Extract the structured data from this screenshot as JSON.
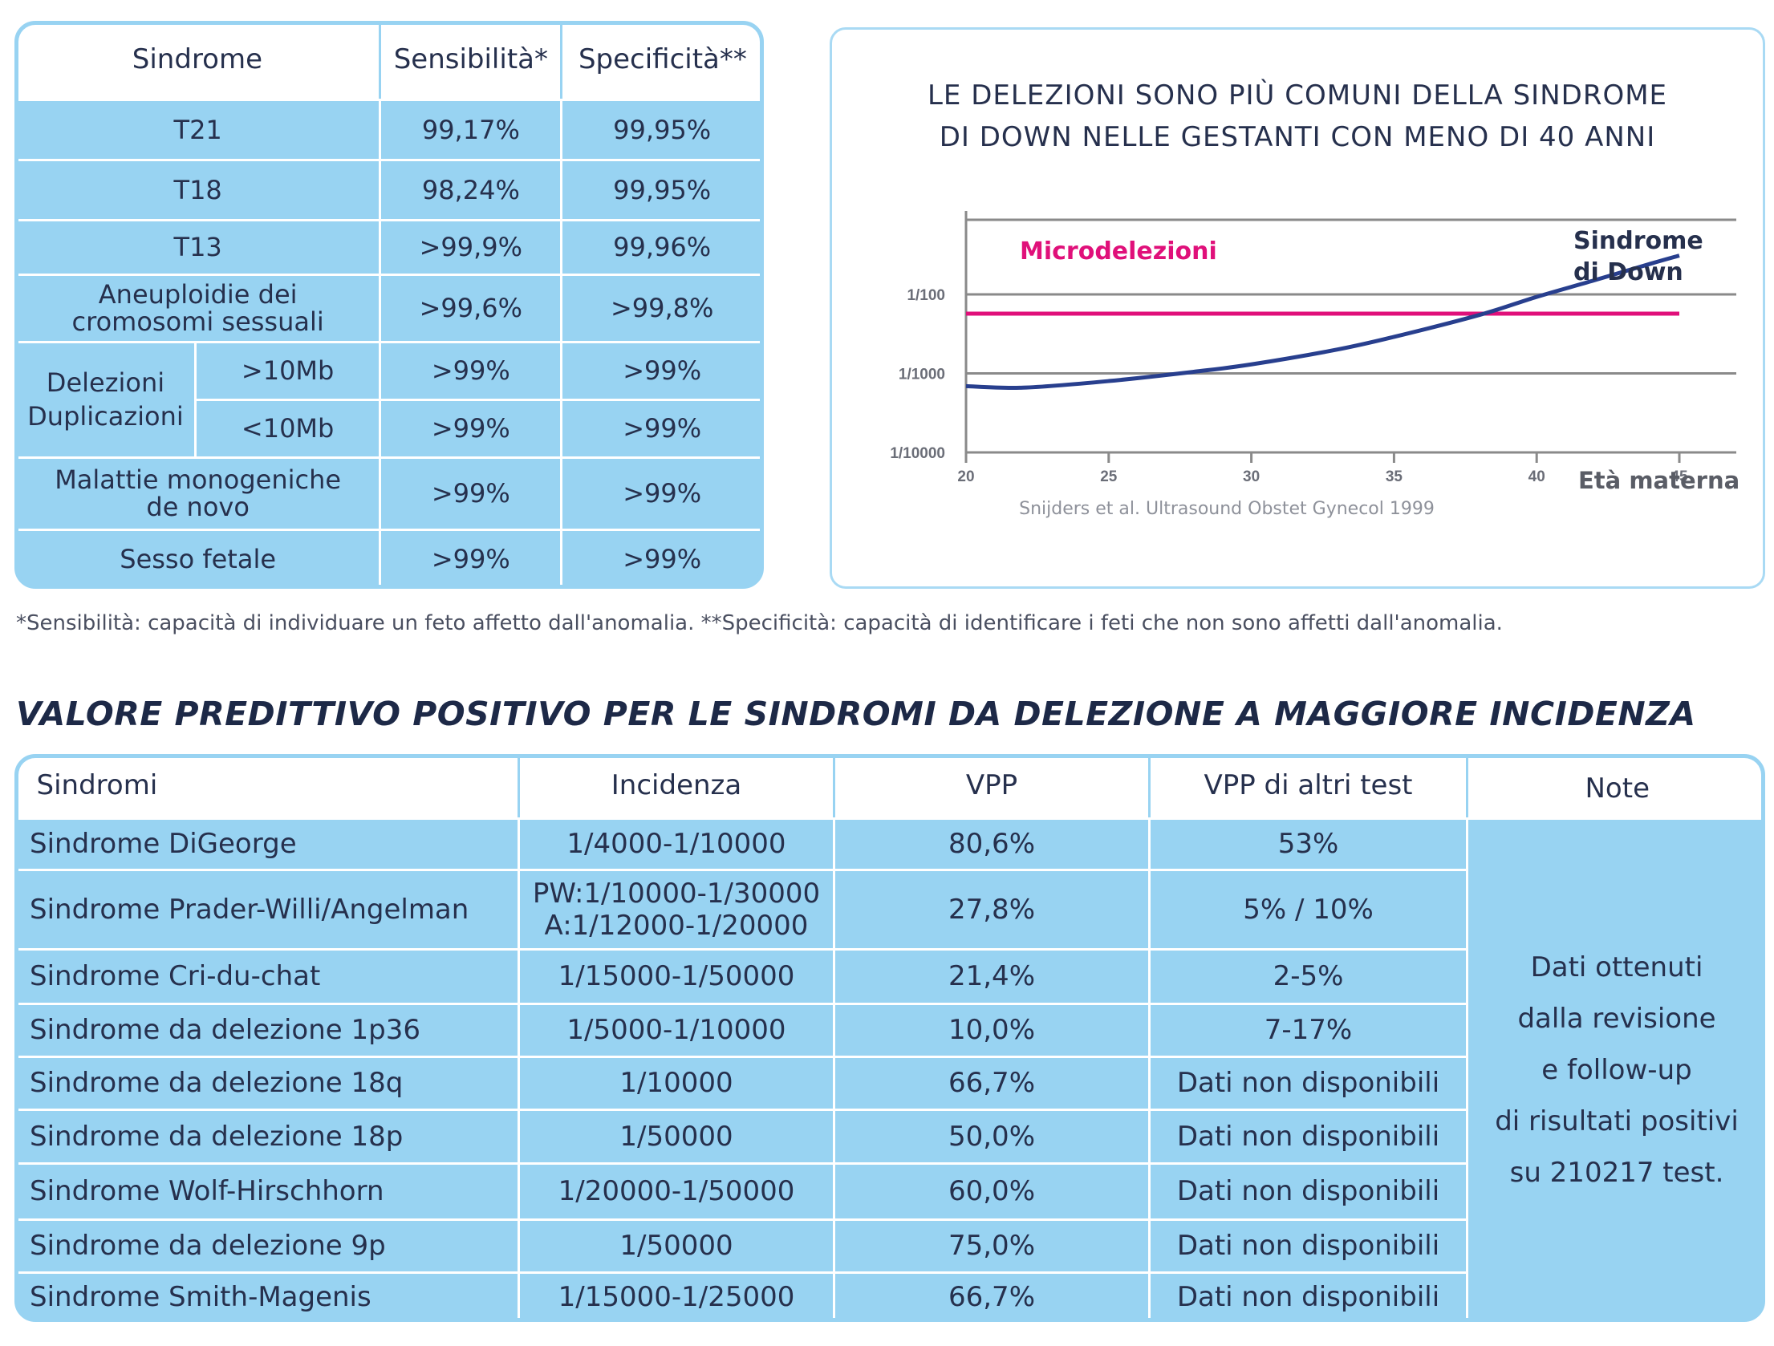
{
  "table1": {
    "headers": [
      "Sindrome",
      "Sensibilità*",
      "Specificità**"
    ],
    "rows": [
      {
        "name": "T21",
        "sens": "99,17%",
        "spec": "99,95%"
      },
      {
        "name": "T18",
        "sens": "98,24%",
        "spec": "99,95%"
      },
      {
        "name": "T13",
        "sens": ">99,9%",
        "spec": "99,96%"
      },
      {
        "name_line1": "Aneuploidie dei",
        "name_line2": "cromosomi sessuali",
        "sens": ">99,6%",
        "spec": ">99,8%"
      },
      {
        "group_line1": "Delezioni",
        "group_line2": "Duplicazioni",
        "sub": ">10Mb",
        "sens": ">99%",
        "spec": ">99%"
      },
      {
        "sub": "<10Mb",
        "sens": ">99%",
        "spec": ">99%"
      },
      {
        "name_line1": "Malattie monogeniche",
        "name_line2": "de novo",
        "sens": ">99%",
        "spec": ">99%"
      },
      {
        "name": "Sesso fetale",
        "sens": ">99%",
        "spec": ">99%"
      }
    ]
  },
  "chart_title_line1": "LE DELEZIONI SONO PIÙ COMUNI DELLA SINDROME",
  "chart_title_line2": "DI DOWN NELLE GESTANTI CON MENO DI 40 ANNI",
  "chart_source": "Snijders et al. Ultrasound Obstet Gynecol 1999",
  "chart_data": {
    "type": "line",
    "xlabel": "Età  materna",
    "ylabel": "",
    "x_ticks": [
      20,
      25,
      30,
      35,
      40,
      45
    ],
    "xlim": [
      20,
      46
    ],
    "y_scale": "log",
    "y_ticks": [
      "1/100",
      "1/1000",
      "1/10000"
    ],
    "y_tick_values": [
      0.01,
      0.001,
      0.0001
    ],
    "ylim": [
      0.0001,
      0.1
    ],
    "grid": true,
    "series": [
      {
        "name": "Microdelezioni",
        "color": "#e0107a",
        "x": [
          20,
          45
        ],
        "y": [
          0.0057,
          0.0057
        ]
      },
      {
        "name_line1": "Sindrome",
        "name_line2": "di Down",
        "color": "#283f8e",
        "x": [
          20,
          22,
          25,
          28,
          30,
          33,
          35,
          38,
          40,
          42,
          44,
          45
        ],
        "y": [
          0.00069,
          0.00066,
          0.0008,
          0.00105,
          0.0013,
          0.002,
          0.0029,
          0.0055,
          0.0093,
          0.015,
          0.0245,
          0.031
        ]
      }
    ]
  },
  "footnote": "*Sensibilità: capacità di individuare un feto affetto dall'anomalia.  **Specificità: capacità di identificare i feti che non sono affetti dall'anomalia.",
  "section_heading": "VALORE PREDITTIVO POSITIVO PER LE SINDROMI DA DELEZIONE A MAGGIORE INCIDENZA",
  "table2": {
    "headers": [
      "Sindromi",
      "Incidenza",
      "VPP",
      "VPP di altri test",
      "Note"
    ],
    "note_lines": [
      "Dati ottenuti",
      "dalla revisione",
      "e follow-up",
      "di risultati positivi",
      "su 210217 test."
    ],
    "rows": [
      {
        "name": "Sindrome DiGeorge",
        "inc": "1/4000-1/10000",
        "vpp": "80,6%",
        "other": "53%"
      },
      {
        "name": "Sindrome Prader-Willi/Angelman",
        "inc_line1": "PW:1/10000-1/30000",
        "inc_line2": "A:1/12000-1/20000",
        "vpp": "27,8%",
        "other": "5% / 10%"
      },
      {
        "name": "Sindrome Cri-du-chat",
        "inc": "1/15000-1/50000",
        "vpp": "21,4%",
        "other": "2-5%"
      },
      {
        "name": "Sindrome da delezione 1p36",
        "inc": "1/5000-1/10000",
        "vpp": "10,0%",
        "other": "7-17%"
      },
      {
        "name": "Sindrome da delezione 18q",
        "inc": "1/10000",
        "vpp": "66,7%",
        "other": "Dati non disponibili"
      },
      {
        "name": "Sindrome da delezione 18p",
        "inc": "1/50000",
        "vpp": "50,0%",
        "other": "Dati non disponibili"
      },
      {
        "name": "Sindrome Wolf-Hirschhorn",
        "inc": "1/20000-1/50000",
        "vpp": "60,0%",
        "other": "Dati non disponibili"
      },
      {
        "name": "Sindrome da delezione 9p",
        "inc": "1/50000",
        "vpp": "75,0%",
        "other": "Dati non disponibili"
      },
      {
        "name": "Sindrome Smith-Magenis",
        "inc": "1/15000-1/25000",
        "vpp": "66,7%",
        "other": "Dati non disponibili"
      }
    ]
  }
}
